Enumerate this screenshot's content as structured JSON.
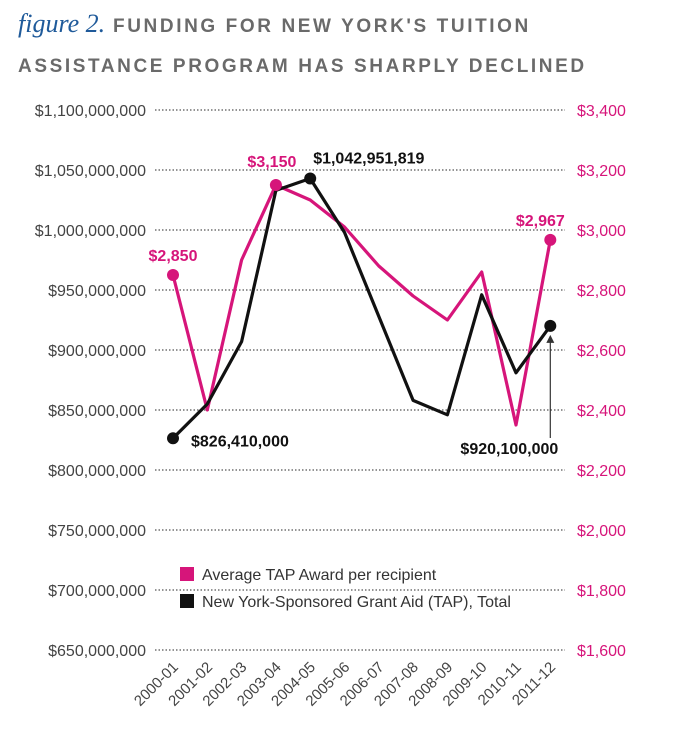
{
  "figure": {
    "label": "figure 2.",
    "title_line1": "FUNDING FOR NEW YORK'S TUITION",
    "title_line2": "ASSISTANCE PROGRAM HAS SHARPLY DECLINED"
  },
  "chart_data": {
    "type": "line",
    "categories": [
      "2000-01",
      "2001-02",
      "2002-03",
      "2003-04",
      "2004-05",
      "2005-06",
      "2006-07",
      "2007-08",
      "2008-09",
      "2009-10",
      "2010-11",
      "2011-12"
    ],
    "y_left": {
      "ylim": [
        650000000,
        1100000000
      ],
      "ticks": [
        "$1,100,000,000",
        "$1,050,000,000",
        "$1,000,000,000",
        "$950,000,000",
        "$900,000,000",
        "$850,000,000",
        "$800,000,000",
        "$750,000,000",
        "$700,000,000",
        "$650,000,000"
      ],
      "tick_values": [
        1100000000,
        1050000000,
        1000000000,
        950000000,
        900000000,
        850000000,
        800000000,
        750000000,
        700000000,
        650000000
      ]
    },
    "y_right": {
      "ylim": [
        1600,
        3400
      ],
      "ticks": [
        "$3,400",
        "$3,200",
        "$3,000",
        "$2,800",
        "$2,600",
        "$2,400",
        "$2,200",
        "$2,000",
        "$1,800",
        "$1,600"
      ],
      "tick_values": [
        3400,
        3200,
        3000,
        2800,
        2600,
        2400,
        2200,
        2000,
        1800,
        1600
      ]
    },
    "grid": "horizontal dotted",
    "legend_position": "bottom-center",
    "series": [
      {
        "name": "Average TAP Award per recipient",
        "axis": "right",
        "color": "#d6157a",
        "values": [
          2850,
          2400,
          2900,
          3150,
          3100,
          3010,
          2880,
          2780,
          2700,
          2860,
          2350,
          2967
        ]
      },
      {
        "name": "New York-Sponsored Grant Aid (TAP), Total",
        "axis": "left",
        "color": "#111111",
        "values": [
          826410000,
          855000000,
          907000000,
          1033000000,
          1042951819,
          998000000,
          928000000,
          858000000,
          846000000,
          946000000,
          881000000,
          920100000
        ]
      }
    ],
    "annotations": [
      {
        "series": 0,
        "index": 0,
        "text": "$2,850"
      },
      {
        "series": 0,
        "index": 3,
        "text": "$3,150"
      },
      {
        "series": 0,
        "index": 11,
        "text": "$2,967"
      },
      {
        "series": 1,
        "index": 4,
        "text": "$1,042,951,819"
      },
      {
        "series": 1,
        "index": 0,
        "text": "$826,410,000"
      },
      {
        "series": 1,
        "index": 11,
        "text": "$920,100,000"
      }
    ]
  }
}
